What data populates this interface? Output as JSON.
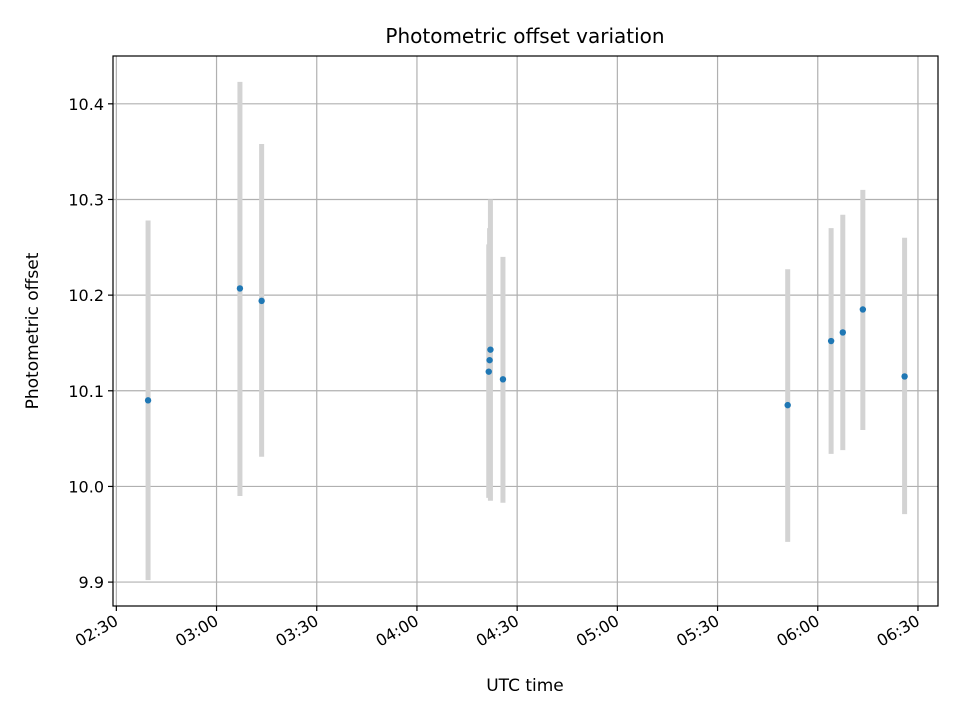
{
  "chart_data": {
    "type": "scatter",
    "title": "Photometric offset variation",
    "xlabel": "UTC time",
    "ylabel": "Photometric offset",
    "xlim": [
      "02:29",
      "06:36"
    ],
    "ylim": [
      9.875,
      10.45
    ],
    "x_ticks": [
      "02:30",
      "03:00",
      "03:30",
      "04:00",
      "04:30",
      "05:00",
      "05:30",
      "06:00",
      "06:30"
    ],
    "y_ticks": [
      9.9,
      10.0,
      10.1,
      10.2,
      10.3,
      10.4
    ],
    "grid": true,
    "colors": {
      "point": "#1f77b4",
      "error_bar": "#d3d3d3",
      "grid": "#b0b0b0"
    },
    "points": [
      {
        "x": "02:39:30",
        "y": 10.09,
        "yerr_low": 9.902,
        "yerr_high": 10.278
      },
      {
        "x": "03:07:00",
        "y": 10.207,
        "yerr_low": 9.99,
        "yerr_high": 10.423
      },
      {
        "x": "03:13:30",
        "y": 10.194,
        "yerr_low": 10.031,
        "yerr_high": 10.358
      },
      {
        "x": "04:21:30",
        "y": 10.12,
        "yerr_low": 9.988,
        "yerr_high": 10.253
      },
      {
        "x": "04:21:45",
        "y": 10.132,
        "yerr_low": 9.99,
        "yerr_high": 10.27
      },
      {
        "x": "04:22:00",
        "y": 10.143,
        "yerr_low": 9.985,
        "yerr_high": 10.3
      },
      {
        "x": "04:25:45",
        "y": 10.112,
        "yerr_low": 9.983,
        "yerr_high": 10.24
      },
      {
        "x": "05:51:00",
        "y": 10.085,
        "yerr_low": 9.942,
        "yerr_high": 10.227
      },
      {
        "x": "06:04:00",
        "y": 10.152,
        "yerr_low": 10.034,
        "yerr_high": 10.27
      },
      {
        "x": "06:07:30",
        "y": 10.161,
        "yerr_low": 10.038,
        "yerr_high": 10.284
      },
      {
        "x": "06:13:30",
        "y": 10.185,
        "yerr_low": 10.059,
        "yerr_high": 10.31
      },
      {
        "x": "06:26:00",
        "y": 10.115,
        "yerr_low": 9.971,
        "yerr_high": 10.26
      }
    ]
  }
}
